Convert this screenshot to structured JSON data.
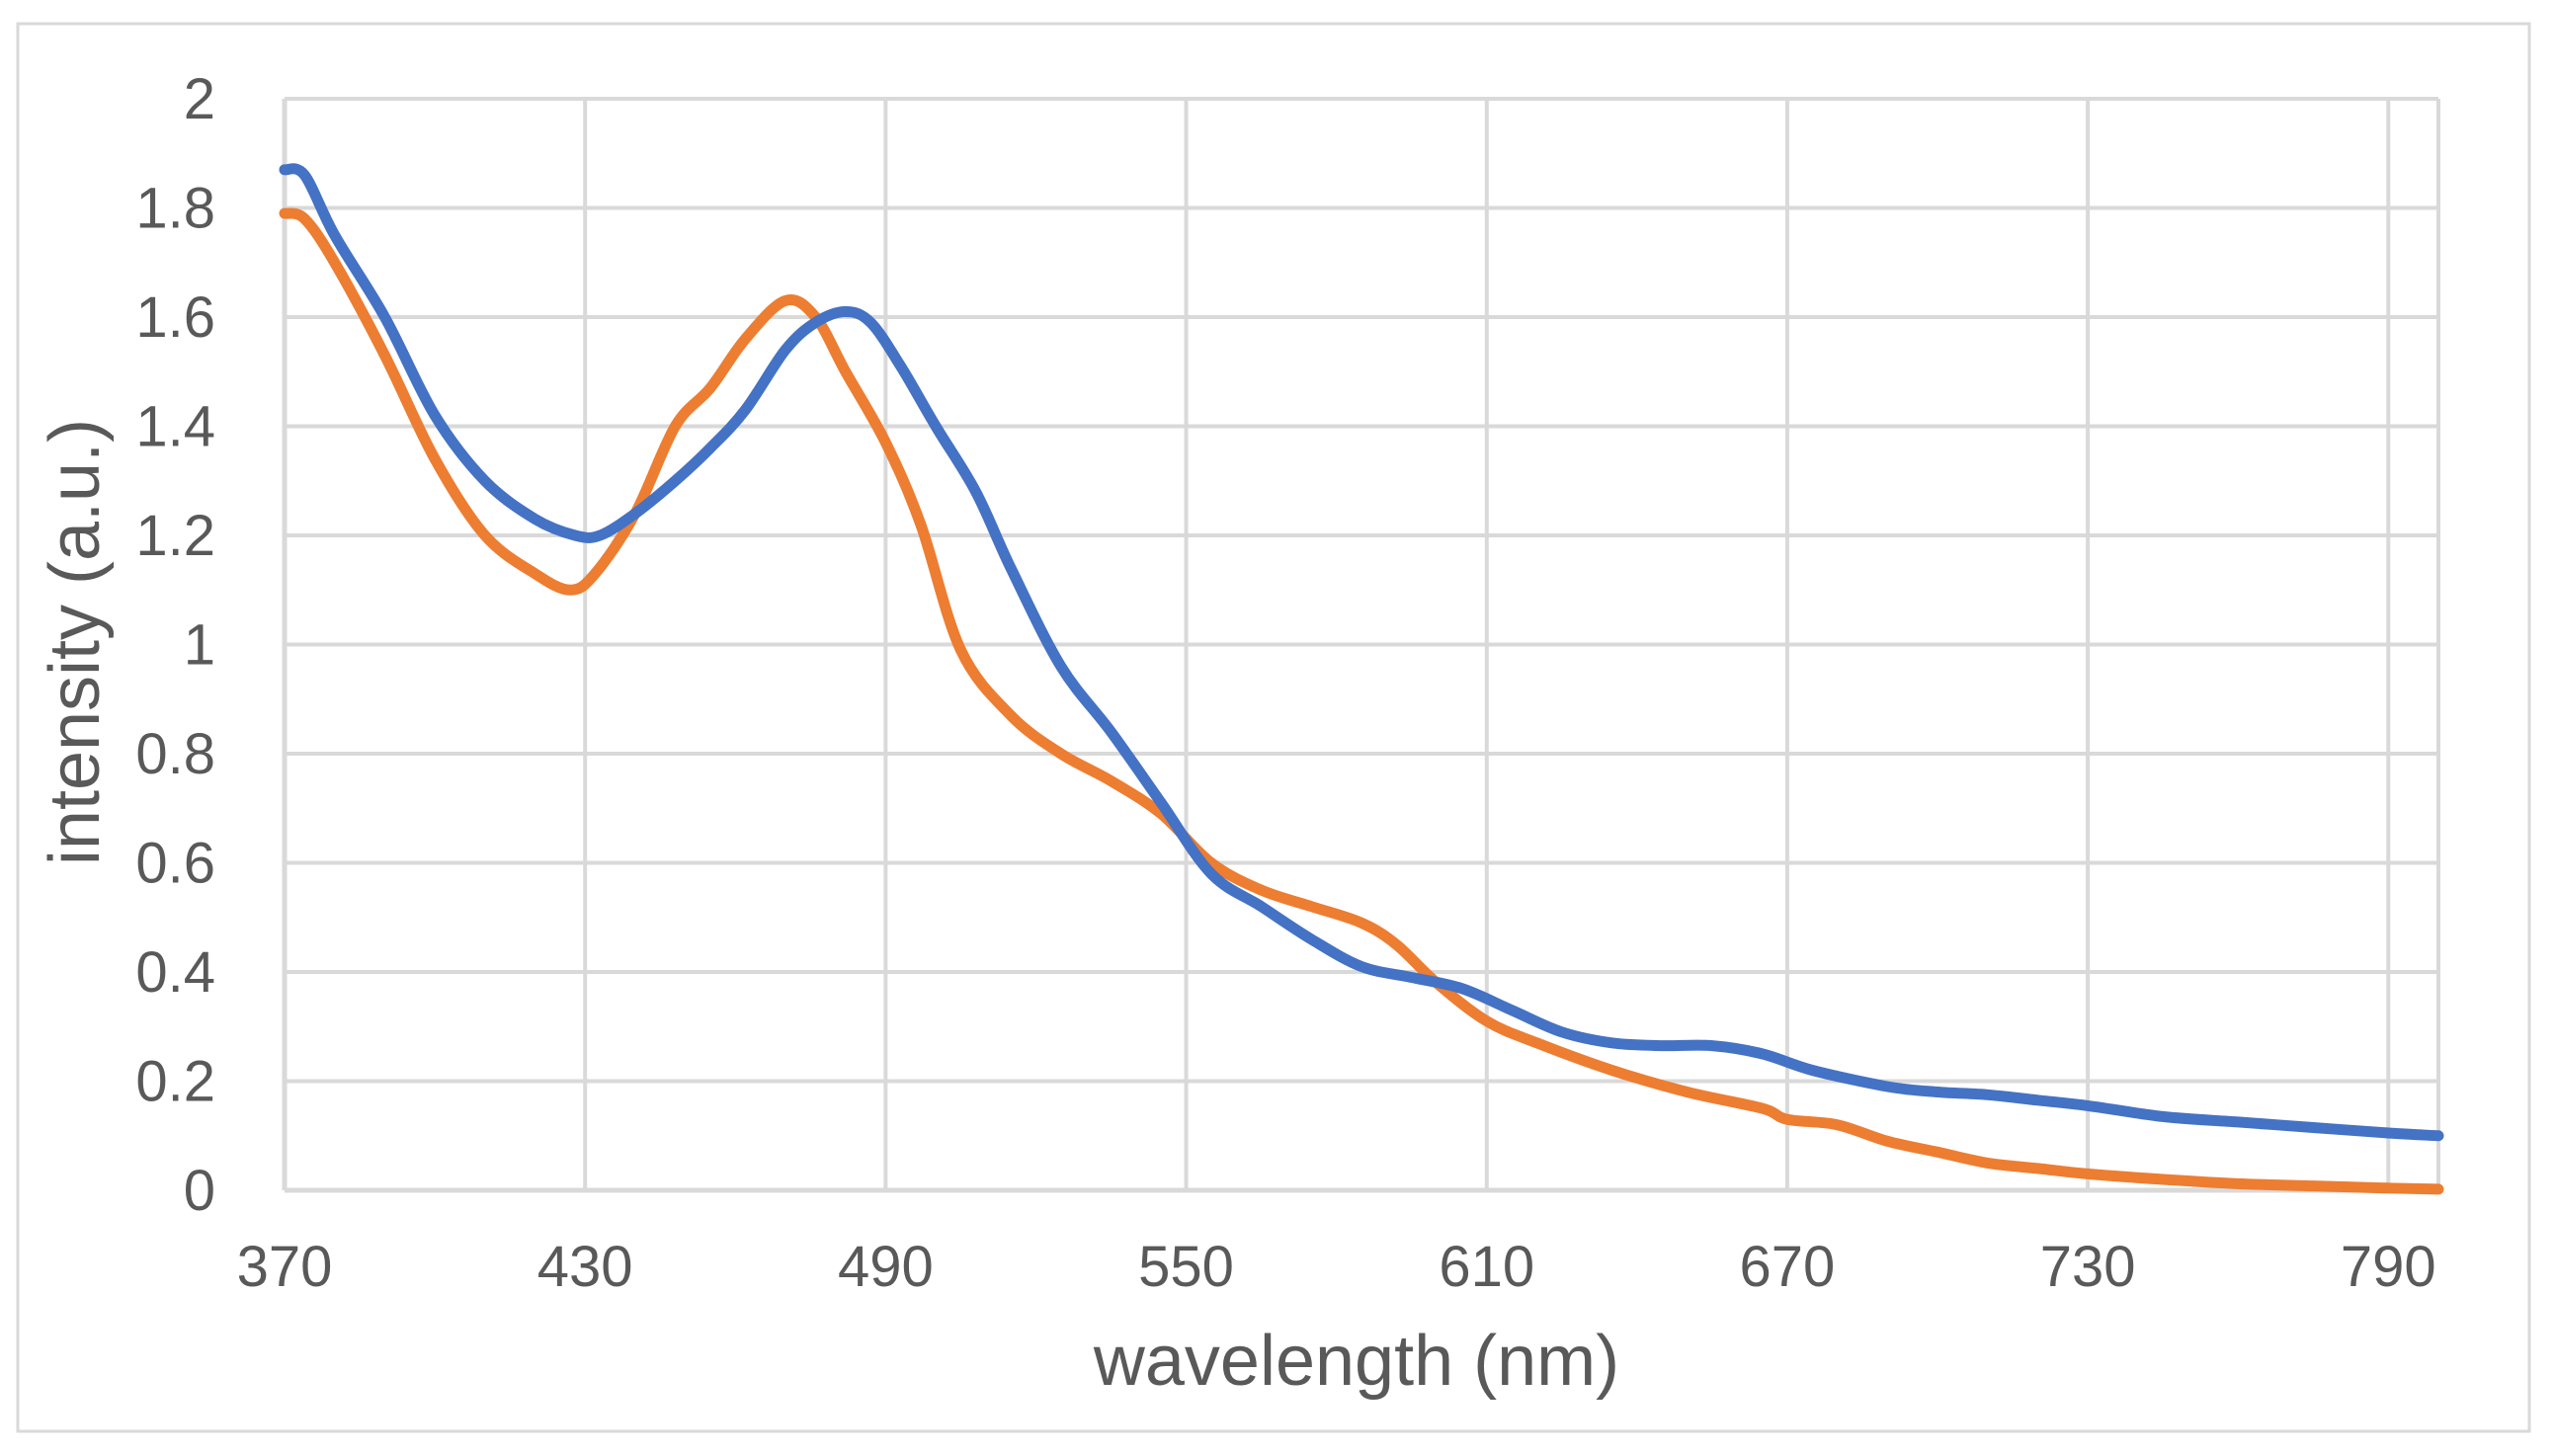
{
  "chart_data": {
    "type": "line",
    "title": "",
    "xlabel": "wavelength (nm)",
    "ylabel": "intensity (a.u.)",
    "xlim": [
      370,
      800
    ],
    "ylim": [
      0,
      2
    ],
    "grid": true,
    "legend": "none",
    "x_ticks": [
      370,
      430,
      490,
      550,
      610,
      670,
      730,
      790
    ],
    "x_tick_labels": [
      "370",
      "430",
      "490",
      "550",
      "610",
      "670",
      "730",
      "790"
    ],
    "y_ticks": [
      0,
      0.2,
      0.4,
      0.6,
      0.8,
      1,
      1.2,
      1.4,
      1.6,
      1.8,
      2
    ],
    "y_tick_labels": [
      "0",
      "0.2",
      "0.4",
      "0.6",
      "0.8",
      "1",
      "1.2",
      "1.4",
      "1.6",
      "1.8",
      "2"
    ],
    "series": [
      {
        "name": "orange",
        "color": "#ED7D31",
        "x": [
          370,
          374,
          380,
          390,
          400,
          410,
          420,
          427,
          432,
          440,
          448,
          455,
          462,
          470,
          476,
          482,
          490,
          497,
          505,
          515,
          525,
          535,
          545,
          555,
          565,
          575,
          585,
          592,
          600,
          610,
          620,
          635,
          650,
          665,
          670,
          680,
          690,
          700,
          710,
          720,
          730,
          745,
          760,
          775,
          790,
          800
        ],
        "y": [
          1.79,
          1.78,
          1.7,
          1.53,
          1.34,
          1.2,
          1.13,
          1.1,
          1.13,
          1.24,
          1.4,
          1.47,
          1.56,
          1.63,
          1.6,
          1.5,
          1.37,
          1.22,
          0.99,
          0.87,
          0.8,
          0.75,
          0.69,
          0.6,
          0.55,
          0.52,
          0.49,
          0.45,
          0.38,
          0.31,
          0.27,
          0.22,
          0.18,
          0.15,
          0.13,
          0.12,
          0.09,
          0.07,
          0.05,
          0.04,
          0.03,
          0.02,
          0.012,
          0.008,
          0.004,
          0.002
        ]
      },
      {
        "name": "blue",
        "color": "#4472C4",
        "x": [
          370,
          374,
          380,
          390,
          400,
          410,
          420,
          428,
          433,
          440,
          448,
          455,
          462,
          470,
          476,
          482,
          487,
          493,
          500,
          508,
          515,
          525,
          535,
          545,
          555,
          565,
          575,
          585,
          595,
          605,
          615,
          625,
          635,
          645,
          655,
          665,
          675,
          690,
          700,
          710,
          720,
          730,
          745,
          760,
          775,
          790,
          800
        ],
        "y": [
          1.87,
          1.86,
          1.75,
          1.6,
          1.42,
          1.3,
          1.23,
          1.2,
          1.2,
          1.24,
          1.3,
          1.36,
          1.43,
          1.54,
          1.59,
          1.61,
          1.59,
          1.51,
          1.4,
          1.28,
          1.14,
          0.96,
          0.84,
          0.71,
          0.58,
          0.52,
          0.46,
          0.41,
          0.39,
          0.37,
          0.33,
          0.29,
          0.27,
          0.265,
          0.265,
          0.25,
          0.22,
          0.19,
          0.18,
          0.175,
          0.165,
          0.155,
          0.135,
          0.125,
          0.115,
          0.105,
          0.1
        ]
      }
    ]
  }
}
